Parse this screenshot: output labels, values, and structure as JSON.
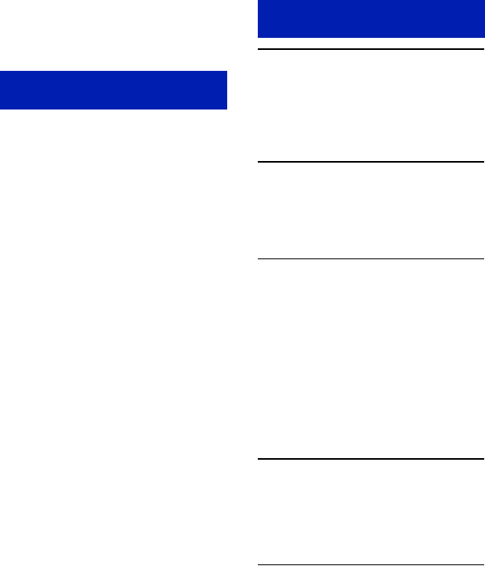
{
  "colors": {
    "accent_block": "#001EAF",
    "rule": "#000000",
    "background": "#FFFFFF"
  }
}
